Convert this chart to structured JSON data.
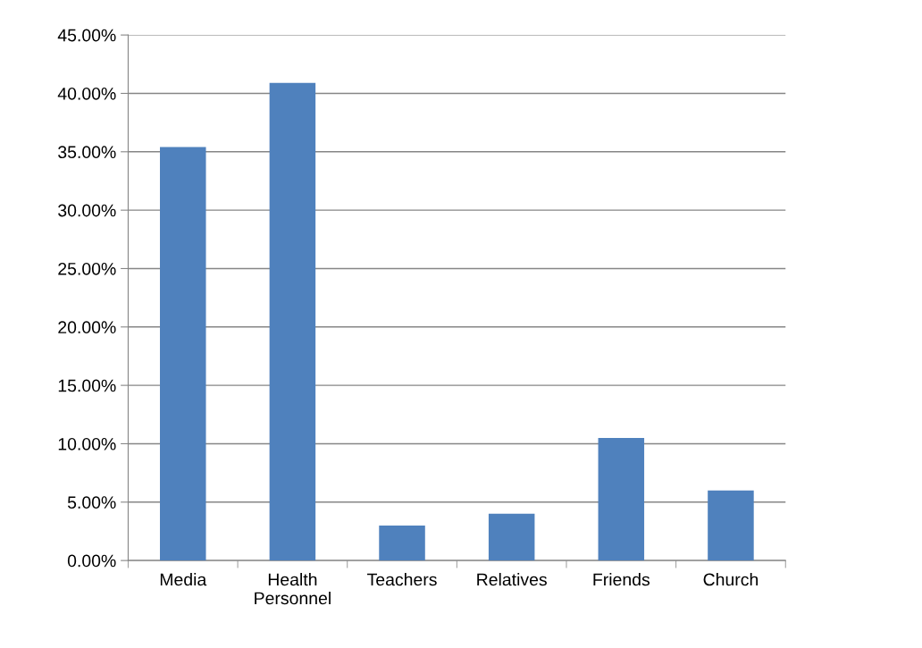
{
  "chart_data": {
    "type": "bar",
    "categories": [
      "Media",
      "Health\nPersonnel",
      "Teachers",
      "Relatives",
      "Friends",
      "Church"
    ],
    "values": [
      35.4,
      40.9,
      3.0,
      4.0,
      10.5,
      6.0
    ],
    "color": "#4f81bd",
    "ylim": [
      0,
      45
    ],
    "yticks": [
      {
        "value": 0,
        "label": "0.00%"
      },
      {
        "value": 5,
        "label": "5.00%"
      },
      {
        "value": 10,
        "label": "10.00%"
      },
      {
        "value": 15,
        "label": "15.00%"
      },
      {
        "value": 20,
        "label": "20.00%"
      },
      {
        "value": 25,
        "label": "25.00%"
      },
      {
        "value": 30,
        "label": "30.00%"
      },
      {
        "value": 35,
        "label": "35.00%"
      },
      {
        "value": 40,
        "label": "40.00%"
      },
      {
        "value": 45,
        "label": "45.00%"
      }
    ],
    "grid": "y",
    "legend": false
  }
}
